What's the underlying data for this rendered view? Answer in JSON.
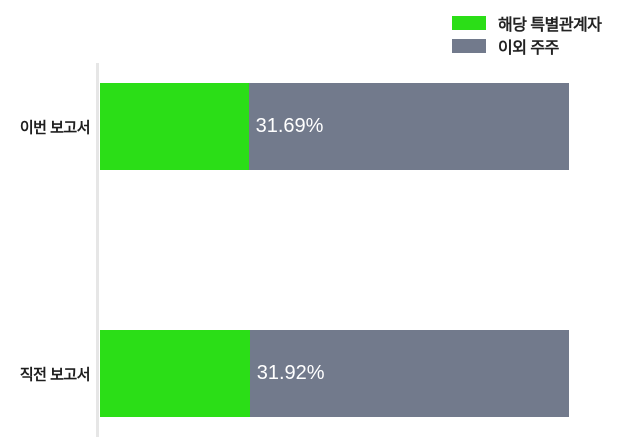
{
  "chart_data": {
    "type": "bar",
    "orientation": "horizontal",
    "stacked": true,
    "title": "",
    "categories": [
      "이번 보고서",
      "직전 보고서"
    ],
    "series": [
      {
        "name": "해당 특별관계자",
        "color": "#2BDE17",
        "values": [
          31.69,
          31.92
        ]
      },
      {
        "name": "이외 주주",
        "color": "#727A8C",
        "values": [
          68.31,
          68.08
        ]
      }
    ],
    "bar_labels": [
      "31.69%",
      "31.92%"
    ],
    "value_unit": "%",
    "xlim": [
      0,
      100
    ],
    "grid": false,
    "legend_position": "top-right",
    "background_color": "#FFFFFF",
    "axis_line_color": "#E6E6E6",
    "category_label_color": "#1E1E1E",
    "bar_label_color": "#FFFFFF"
  }
}
